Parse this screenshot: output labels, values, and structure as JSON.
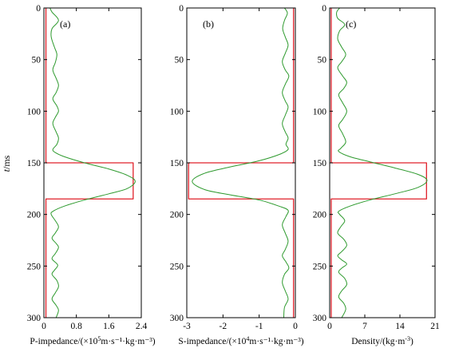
{
  "chart_data": [
    {
      "type": "line",
      "panel_label": "(a)",
      "xlabel_prefix": "P-impedance/(×10",
      "xlabel_exp": "5",
      "xlabel_suffix": "m·s⁻¹·kg·m⁻³)",
      "ylabel_var": "t",
      "ylabel_unit": "/ms",
      "xlim": [
        0,
        2.4
      ],
      "ylim": [
        0,
        300
      ],
      "x_ticks": [
        "0",
        "0.8",
        "1.6",
        "2.4"
      ],
      "y_ticks": [
        "0",
        "50",
        "100",
        "150",
        "200",
        "250",
        "300"
      ],
      "series": [
        {
          "kind": "boxcar",
          "color": "#e0202a",
          "points": [
            [
              0.05,
              0
            ],
            [
              0.05,
              150
            ],
            [
              2.2,
              150
            ],
            [
              2.2,
              185
            ],
            [
              0.05,
              185
            ],
            [
              0.05,
              300
            ]
          ]
        },
        {
          "kind": "curve",
          "color": "#2e9a2e",
          "points": [
            [
              0.15,
              0
            ],
            [
              0.2,
              4
            ],
            [
              0.36,
              12
            ],
            [
              0.2,
              20
            ],
            [
              0.18,
              28
            ],
            [
              0.26,
              38
            ],
            [
              0.32,
              45
            ],
            [
              0.28,
              53
            ],
            [
              0.22,
              60
            ],
            [
              0.3,
              68
            ],
            [
              0.36,
              75
            ],
            [
              0.3,
              82
            ],
            [
              0.22,
              88
            ],
            [
              0.32,
              95
            ],
            [
              0.36,
              100
            ],
            [
              0.28,
              106
            ],
            [
              0.22,
              112
            ],
            [
              0.3,
              120
            ],
            [
              0.36,
              126
            ],
            [
              0.32,
              132
            ],
            [
              0.22,
              137
            ],
            [
              0.28,
              140
            ],
            [
              0.5,
              144
            ],
            [
              1.0,
              150
            ],
            [
              1.6,
              156
            ],
            [
              2.05,
              162
            ],
            [
              2.25,
              168
            ],
            [
              2.05,
              175
            ],
            [
              1.6,
              180
            ],
            [
              1.0,
              186
            ],
            [
              0.5,
              192
            ],
            [
              0.22,
              197
            ],
            [
              0.18,
              200
            ],
            [
              0.28,
              206
            ],
            [
              0.36,
              212
            ],
            [
              0.28,
              218
            ],
            [
              0.2,
              223
            ],
            [
              0.3,
              228
            ],
            [
              0.36,
              232
            ],
            [
              0.28,
              238
            ],
            [
              0.2,
              243
            ],
            [
              0.34,
              249
            ],
            [
              0.26,
              254
            ],
            [
              0.2,
              258
            ],
            [
              0.32,
              264
            ],
            [
              0.36,
              270
            ],
            [
              0.28,
              276
            ],
            [
              0.2,
              282
            ],
            [
              0.3,
              288
            ],
            [
              0.36,
              293
            ],
            [
              0.3,
              300
            ]
          ]
        }
      ]
    },
    {
      "type": "line",
      "panel_label": "(b)",
      "xlabel_prefix": "S-impedance/(×10",
      "xlabel_exp": "4",
      "xlabel_suffix": "m·s⁻¹·kg·m⁻³)",
      "xlim": [
        -3,
        0
      ],
      "ylim": [
        0,
        300
      ],
      "x_ticks": [
        "-3",
        "-2",
        "-1",
        "0"
      ],
      "y_ticks": [
        "0",
        "50",
        "100",
        "150",
        "200",
        "250",
        "300"
      ],
      "series": [
        {
          "kind": "boxcar",
          "color": "#e0202a",
          "points": [
            [
              -0.05,
              0
            ],
            [
              -0.05,
              150
            ],
            [
              -2.95,
              150
            ],
            [
              -2.95,
              185
            ],
            [
              -0.05,
              185
            ],
            [
              -0.05,
              300
            ]
          ]
        },
        {
          "kind": "curve",
          "color": "#2e9a2e",
          "points": [
            [
              -0.3,
              0
            ],
            [
              -0.22,
              5
            ],
            [
              -0.3,
              12
            ],
            [
              -0.35,
              20
            ],
            [
              -0.28,
              28
            ],
            [
              -0.2,
              36
            ],
            [
              -0.28,
              44
            ],
            [
              -0.36,
              52
            ],
            [
              -0.28,
              60
            ],
            [
              -0.18,
              66
            ],
            [
              -0.28,
              74
            ],
            [
              -0.36,
              82
            ],
            [
              -0.28,
              90
            ],
            [
              -0.2,
              96
            ],
            [
              -0.28,
              104
            ],
            [
              -0.36,
              112
            ],
            [
              -0.28,
              120
            ],
            [
              -0.2,
              126
            ],
            [
              -0.26,
              132
            ],
            [
              -0.2,
              137
            ],
            [
              -0.45,
              142
            ],
            [
              -1.0,
              148
            ],
            [
              -1.8,
              154
            ],
            [
              -2.5,
              160
            ],
            [
              -2.85,
              168
            ],
            [
              -2.5,
              176
            ],
            [
              -1.8,
              181
            ],
            [
              -1.0,
              186
            ],
            [
              -0.45,
              192
            ],
            [
              -0.2,
              196
            ],
            [
              -0.26,
              202
            ],
            [
              -0.36,
              210
            ],
            [
              -0.28,
              218
            ],
            [
              -0.2,
              226
            ],
            [
              -0.28,
              234
            ],
            [
              -0.36,
              240
            ],
            [
              -0.26,
              246
            ],
            [
              -0.18,
              252
            ],
            [
              -0.3,
              258
            ],
            [
              -0.36,
              266
            ],
            [
              -0.28,
              274
            ],
            [
              -0.2,
              282
            ],
            [
              -0.3,
              290
            ],
            [
              -0.32,
              300
            ]
          ]
        }
      ]
    },
    {
      "type": "line",
      "panel_label": "(c)",
      "xlabel_prefix": "Density/(kg·m",
      "xlabel_exp": "-3",
      "xlabel_suffix": ")",
      "xlim": [
        0,
        21
      ],
      "ylim": [
        0,
        300
      ],
      "x_ticks": [
        "0",
        "7",
        "14",
        "21"
      ],
      "y_ticks": [
        "0",
        "50",
        "100",
        "150",
        "200",
        "250",
        "300"
      ],
      "series": [
        {
          "kind": "boxcar",
          "color": "#e0202a",
          "points": [
            [
              0.3,
              0
            ],
            [
              0.3,
              150
            ],
            [
              19.3,
              150
            ],
            [
              19.3,
              185
            ],
            [
              0.3,
              185
            ],
            [
              0.3,
              300
            ]
          ]
        },
        {
          "kind": "curve",
          "color": "#2e9a2e",
          "points": [
            [
              2.0,
              0
            ],
            [
              1.4,
              4
            ],
            [
              1.6,
              10
            ],
            [
              3.0,
              16
            ],
            [
              2.0,
              22
            ],
            [
              1.6,
              30
            ],
            [
              2.4,
              38
            ],
            [
              3.2,
              45
            ],
            [
              2.4,
              52
            ],
            [
              1.6,
              58
            ],
            [
              2.6,
              66
            ],
            [
              3.4,
              72
            ],
            [
              2.8,
              78
            ],
            [
              1.8,
              84
            ],
            [
              2.6,
              92
            ],
            [
              3.4,
              100
            ],
            [
              2.6,
              108
            ],
            [
              1.8,
              114
            ],
            [
              2.6,
              122
            ],
            [
              3.2,
              130
            ],
            [
              2.2,
              136
            ],
            [
              1.8,
              139
            ],
            [
              4.0,
              144
            ],
            [
              8.0,
              149
            ],
            [
              13.0,
              155
            ],
            [
              17.5,
              161
            ],
            [
              19.4,
              167
            ],
            [
              17.5,
              174
            ],
            [
              13.0,
              180
            ],
            [
              8.0,
              186
            ],
            [
              4.0,
              192
            ],
            [
              1.8,
              197
            ],
            [
              2.0,
              200
            ],
            [
              3.0,
              206
            ],
            [
              2.2,
              212
            ],
            [
              1.6,
              218
            ],
            [
              2.8,
              224
            ],
            [
              3.4,
              230
            ],
            [
              2.4,
              236
            ],
            [
              1.6,
              240
            ],
            [
              2.4,
              244
            ],
            [
              3.4,
              248
            ],
            [
              2.4,
              252
            ],
            [
              1.8,
              256
            ],
            [
              3.0,
              262
            ],
            [
              3.4,
              268
            ],
            [
              2.4,
              274
            ],
            [
              1.8,
              280
            ],
            [
              2.8,
              286
            ],
            [
              3.2,
              292
            ],
            [
              2.4,
              300
            ]
          ]
        }
      ]
    }
  ]
}
